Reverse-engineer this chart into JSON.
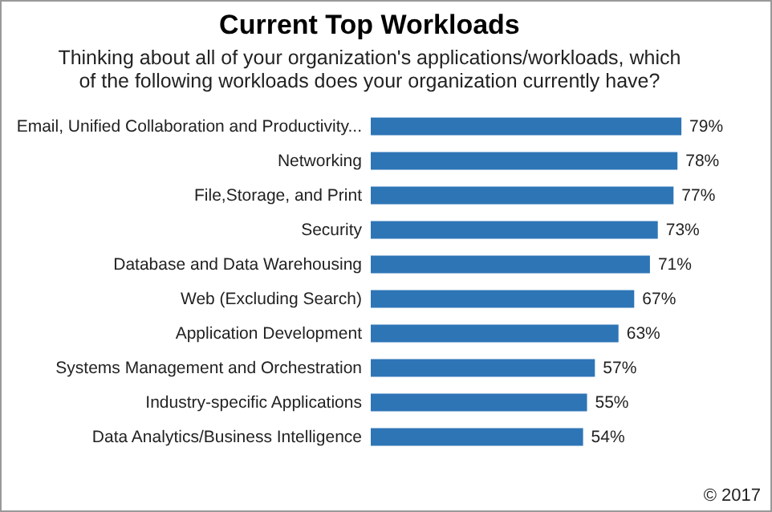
{
  "chart_data": {
    "type": "bar",
    "orientation": "horizontal",
    "title": "Current Top Workloads",
    "subtitle": "Thinking about all of your organization's applications/workloads, which of the following workloads does your organization currently have?",
    "categories": [
      "Email, Unified Collaboration and Productivity...",
      "Networking",
      "File,Storage, and Print",
      "Security",
      "Database and Data Warehousing",
      "Web (Excluding Search)",
      "Application Development",
      "Systems Management and Orchestration",
      "Industry-specific Applications",
      "Data Analytics/Business Intelligence"
    ],
    "values": [
      79,
      78,
      77,
      73,
      71,
      67,
      63,
      57,
      55,
      54
    ],
    "value_labels": [
      "79%",
      "78%",
      "77%",
      "73%",
      "71%",
      "67%",
      "63%",
      "57%",
      "55%",
      "54%"
    ],
    "color": "#2e75b6",
    "annotations": [
      "© 2017"
    ]
  }
}
